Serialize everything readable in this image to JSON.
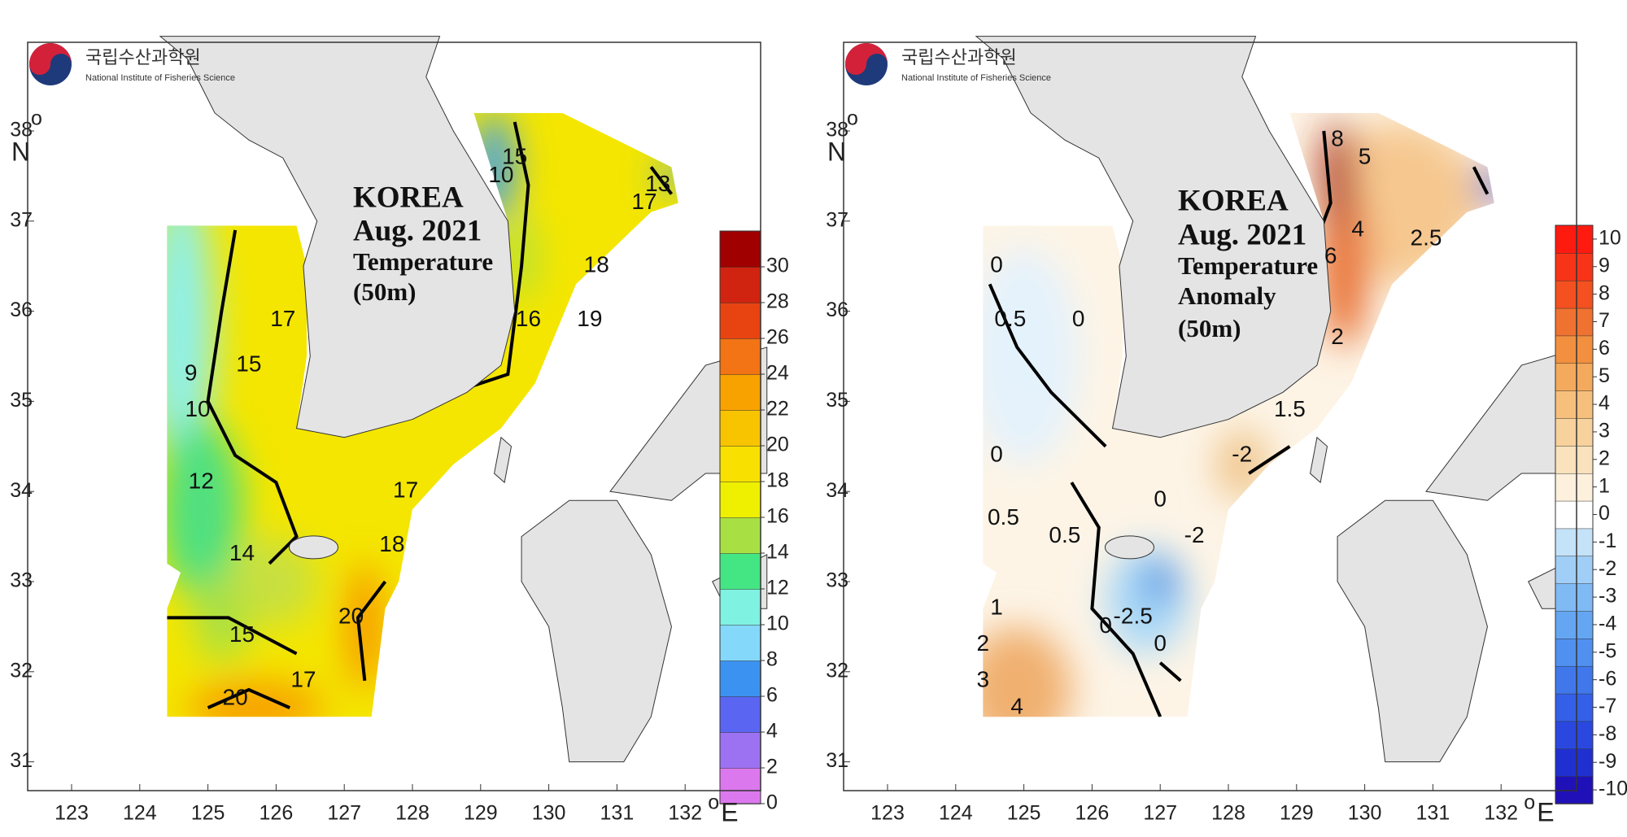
{
  "panels": [
    {
      "logo": {
        "korean": "국립수산과학원",
        "english": "National Institute of Fisheries Science"
      },
      "title": [
        "KOREA",
        "Aug. 2021",
        "Temperature",
        "(50m)"
      ],
      "lat_ticks": [
        31,
        32,
        33,
        34,
        35,
        36,
        37,
        38
      ],
      "lat_degree": "o",
      "lat_unit": "N",
      "lon_ticks": [
        123,
        124,
        125,
        126,
        127,
        128,
        129,
        130,
        131,
        132
      ],
      "lon_degree": "o",
      "lon_unit": "E",
      "colorbar": {
        "range": [
          0,
          32
        ],
        "ticks": [
          0,
          2,
          4,
          6,
          8,
          10,
          12,
          14,
          16,
          18,
          20,
          22,
          24,
          26,
          28,
          30
        ],
        "colors": [
          "#dc78ee",
          "#9c72f2",
          "#5a66f2",
          "#3c92f0",
          "#84d8fa",
          "#80f2e2",
          "#44e684",
          "#a8e044",
          "#eef000",
          "#f8e000",
          "#f8c400",
          "#f8a200",
          "#f27414",
          "#e84412",
          "#d02410",
          "#a00000"
        ]
      },
      "contour_labels": [
        "9",
        "10",
        "12",
        "14",
        "15",
        "17",
        "15",
        "20",
        "17",
        "20",
        "18",
        "17",
        "16",
        "19",
        "18",
        "15",
        "10",
        "17",
        "13"
      ]
    },
    {
      "logo": {
        "korean": "국립수산과학원",
        "english": "National Institute of Fisheries Science"
      },
      "title": [
        "KOREA",
        "Aug. 2021",
        "Temperature",
        "Anomaly",
        "(50m)"
      ],
      "lat_ticks": [
        31,
        32,
        33,
        34,
        35,
        36,
        37,
        38
      ],
      "lat_degree": "o",
      "lat_unit": "N",
      "lon_ticks": [
        123,
        124,
        125,
        126,
        127,
        128,
        129,
        130,
        131,
        132
      ],
      "lon_degree": "o",
      "lon_unit": "E",
      "colorbar": {
        "range": [
          -10.5,
          10.5
        ],
        "ticks": [
          -10,
          -9,
          -8,
          -7,
          -6,
          -5,
          -4,
          -3,
          -2,
          -1,
          0,
          1,
          2,
          3,
          4,
          5,
          6,
          7,
          8,
          9,
          10
        ],
        "colors": [
          "#2010b8",
          "#2030d0",
          "#2a48e0",
          "#3460e8",
          "#4078ec",
          "#5090f0",
          "#64a6f2",
          "#80baf4",
          "#a0cef6",
          "#c4e2f8",
          "#ffffff",
          "#fdf0dc",
          "#fae2bc",
          "#f8d29c",
          "#f6c07c",
          "#f4aa5c",
          "#f29040",
          "#f07230",
          "#f45020",
          "#f83418",
          "#ff1a10"
        ]
      },
      "contour_labels": [
        "0",
        "0.5",
        "0",
        "0",
        "0.5",
        "0.5",
        "0",
        "-2",
        "-2",
        "1.5",
        "2",
        "1",
        "2",
        "3",
        "4",
        "0",
        "-2.5",
        "0",
        "6",
        "4",
        "5",
        "8",
        "2.5"
      ]
    }
  ]
}
